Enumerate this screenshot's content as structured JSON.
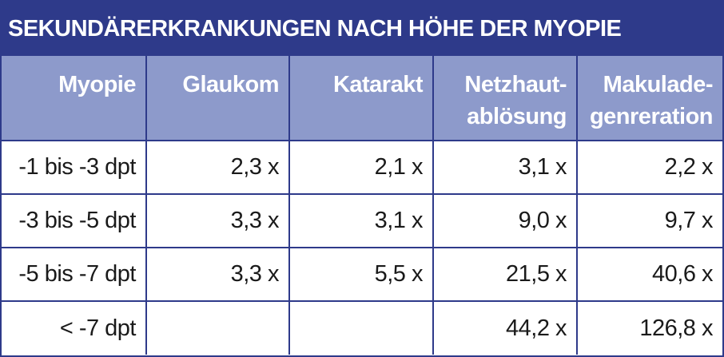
{
  "header": {
    "title": "SEKUNDÄRERKRANKUNGEN NACH HÖHE DER MYOPIE"
  },
  "table": {
    "columns": [
      [
        "Myopie"
      ],
      [
        "Glaukom"
      ],
      [
        "Katarakt"
      ],
      [
        "Netzhaut-",
        "ablösung"
      ],
      [
        "Makulade-",
        "genreration"
      ]
    ],
    "rows": [
      [
        "-1 bis -3 dpt",
        "2,3 x",
        "2,1 x",
        "3,1 x",
        "2,2 x"
      ],
      [
        "-3 bis -5 dpt",
        "3,3 x",
        "3,1 x",
        "9,0 x",
        "9,7 x"
      ],
      [
        "-5 bis -7 dpt",
        "3,3 x",
        "5,5 x",
        "21,5 x",
        "40,6 x"
      ],
      [
        "< -7 dpt",
        null,
        null,
        "44,2 x",
        "126,8 x"
      ]
    ]
  }
}
